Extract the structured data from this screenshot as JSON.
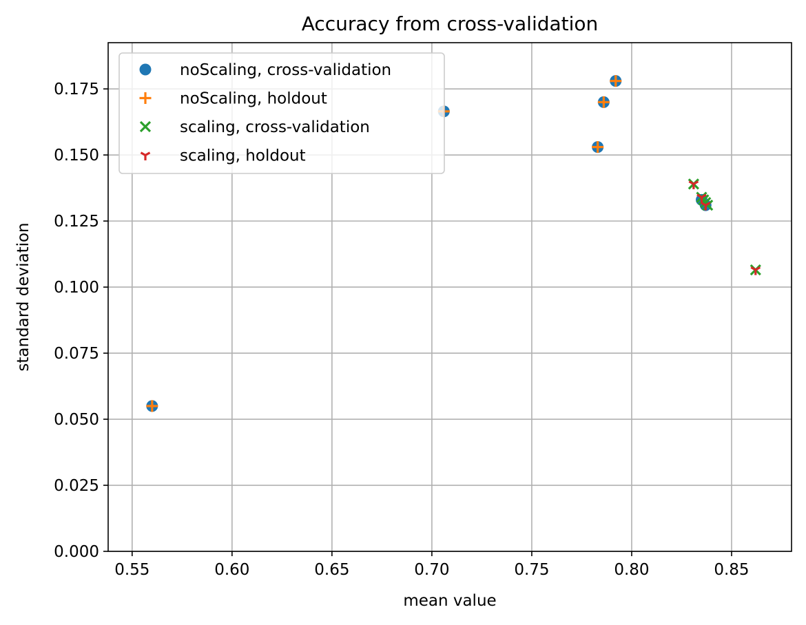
{
  "chart_data": {
    "type": "scatter",
    "title": "Accuracy from cross-validation",
    "xlabel": "mean value",
    "ylabel": "standard deviation",
    "xlim": [
      0.538,
      0.88
    ],
    "ylim": [
      0.0,
      0.1925
    ],
    "xticks": [
      0.55,
      0.6,
      0.65,
      0.7,
      0.75,
      0.8,
      0.85
    ],
    "xtick_labels": [
      "0.55",
      "0.60",
      "0.65",
      "0.70",
      "0.75",
      "0.80",
      "0.85"
    ],
    "yticks": [
      0.0,
      0.025,
      0.05,
      0.075,
      0.1,
      0.125,
      0.15,
      0.175
    ],
    "ytick_labels": [
      "0.000",
      "0.025",
      "0.050",
      "0.075",
      "0.100",
      "0.125",
      "0.150",
      "0.175"
    ],
    "grid": true,
    "legend_position": "upper-left",
    "series": [
      {
        "name": "noScaling, cross-validation",
        "marker": "circle",
        "color": "#1f77b4",
        "x": [
          0.56,
          0.706,
          0.783,
          0.786,
          0.792,
          0.835,
          0.837
        ],
        "y": [
          0.055,
          0.1665,
          0.153,
          0.17,
          0.178,
          0.133,
          0.131
        ]
      },
      {
        "name": "noScaling, holdout",
        "marker": "plus",
        "color": "#ff7f0e",
        "x": [
          0.56,
          0.706,
          0.783,
          0.786,
          0.792
        ],
        "y": [
          0.055,
          0.1665,
          0.153,
          0.17,
          0.178
        ]
      },
      {
        "name": "scaling, cross-validation",
        "marker": "x",
        "color": "#2ca02c",
        "x": [
          0.831,
          0.835,
          0.836,
          0.837,
          0.838,
          0.862
        ],
        "y": [
          0.139,
          0.134,
          0.133,
          0.132,
          0.131,
          0.1065
        ]
      },
      {
        "name": "scaling, holdout",
        "marker": "tri_down",
        "color": "#d62728",
        "x": [
          0.831,
          0.835,
          0.837,
          0.862
        ],
        "y": [
          0.139,
          0.134,
          0.131,
          0.1065
        ]
      }
    ]
  }
}
